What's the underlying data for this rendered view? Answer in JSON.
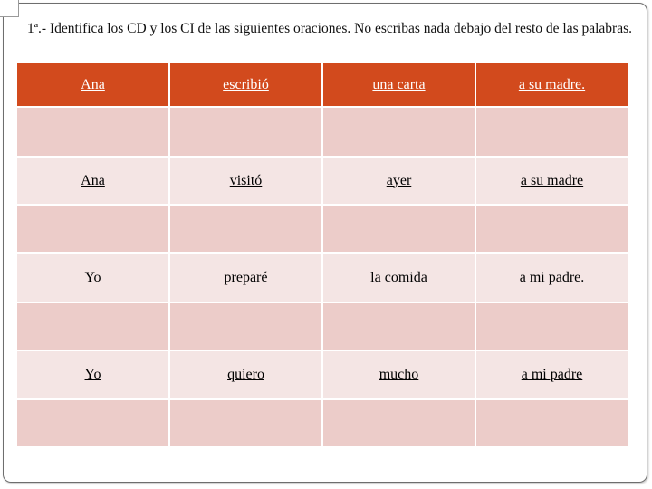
{
  "instruction": "1ª.- Identifica los CD y los CI de las siguientes oraciones. No escribas nada debajo del resto de las palabras.",
  "colors": {
    "header_background": "#d24a1d",
    "word_row_background": "#f4e5e4",
    "answer_row_background": "#ecccc9"
  },
  "sentences": [
    {
      "words": [
        "Ana",
        "escribió",
        "una carta",
        "a su madre."
      ]
    },
    {
      "words": [
        "Ana",
        "visitó",
        "ayer",
        "a su madre"
      ]
    },
    {
      "words": [
        "Yo",
        "preparé",
        "la comida",
        "a mi padre."
      ]
    },
    {
      "words": [
        "Yo",
        "quiero",
        "mucho",
        "a mi padre"
      ]
    }
  ]
}
